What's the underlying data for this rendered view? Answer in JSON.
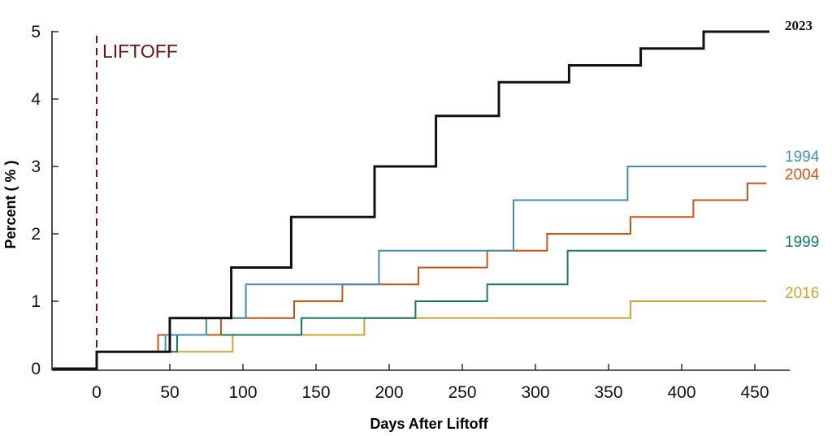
{
  "chart_data": {
    "type": "line",
    "title": "",
    "xlabel": "Days After Liftoff",
    "ylabel": "Percent ( % )",
    "xlim": [
      -30,
      460
    ],
    "ylim": [
      0,
      5
    ],
    "x_ticks": [
      0,
      50,
      100,
      150,
      200,
      250,
      300,
      350,
      400,
      450
    ],
    "y_ticks": [
      0,
      1,
      2,
      3,
      4,
      5
    ],
    "grid": false,
    "legend": "labels at right end of each line",
    "annotations": [
      {
        "text": "LIFTOFF",
        "x": 0,
        "style": "dashed vertical line",
        "color": "#6b1414"
      }
    ],
    "series": [
      {
        "name": "2023",
        "color": "#111111",
        "x": [
          -30,
          0,
          0,
          50,
          50,
          92,
          92,
          133,
          133,
          190,
          190,
          232,
          232,
          275,
          275,
          323,
          323,
          372,
          372,
          415,
          415,
          460
        ],
        "y": [
          0,
          0,
          0.25,
          0.25,
          0.75,
          0.75,
          1.5,
          1.5,
          2.25,
          2.25,
          3.0,
          3.0,
          3.75,
          3.75,
          4.25,
          4.25,
          4.5,
          4.5,
          4.75,
          4.75,
          5.0,
          5.0
        ]
      },
      {
        "name": "1994",
        "color": "#4a8cb0",
        "x": [
          -30,
          0,
          0,
          47,
          47,
          75,
          75,
          102,
          102,
          193,
          193,
          285,
          285,
          363,
          363,
          458
        ],
        "y": [
          0,
          0,
          0.25,
          0.25,
          0.5,
          0.5,
          0.75,
          0.75,
          1.25,
          1.25,
          1.75,
          1.75,
          2.5,
          2.5,
          3.0,
          3.0
        ]
      },
      {
        "name": "2004",
        "color": "#c8551b",
        "x": [
          -30,
          0,
          0,
          42,
          42,
          85,
          85,
          135,
          135,
          168,
          168,
          220,
          220,
          267,
          267,
          308,
          308,
          365,
          365,
          408,
          408,
          445,
          445,
          458
        ],
        "y": [
          0,
          0,
          0.25,
          0.25,
          0.5,
          0.5,
          0.75,
          0.75,
          1.0,
          1.0,
          1.25,
          1.25,
          1.5,
          1.5,
          1.75,
          1.75,
          2.0,
          2.0,
          2.25,
          2.25,
          2.5,
          2.5,
          2.75,
          2.75
        ]
      },
      {
        "name": "1999",
        "color": "#1a7a5c",
        "x": [
          -30,
          0,
          0,
          55,
          55,
          140,
          140,
          218,
          218,
          267,
          267,
          322,
          322,
          458
        ],
        "y": [
          0,
          0,
          0.25,
          0.25,
          0.5,
          0.5,
          0.75,
          0.75,
          1.0,
          1.0,
          1.25,
          1.25,
          1.75,
          1.75
        ]
      },
      {
        "name": "2016",
        "color": "#c9a63a",
        "x": [
          -30,
          0,
          0,
          93,
          93,
          183,
          183,
          365,
          365,
          458
        ],
        "y": [
          0,
          0,
          0.25,
          0.25,
          0.5,
          0.5,
          0.75,
          0.75,
          1.0,
          1.0
        ]
      }
    ]
  }
}
